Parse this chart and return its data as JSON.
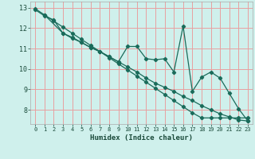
{
  "xlabel": "Humidex (Indice chaleur)",
  "bg_color": "#cff0ec",
  "grid_color": "#e8a0a0",
  "line_color": "#1a6b5a",
  "xlim": [
    -0.5,
    23.5
  ],
  "ylim": [
    7.3,
    13.3
  ],
  "xticks": [
    0,
    1,
    2,
    3,
    4,
    5,
    6,
    7,
    8,
    9,
    10,
    11,
    12,
    13,
    14,
    15,
    16,
    17,
    18,
    19,
    20,
    21,
    22,
    23
  ],
  "yticks": [
    8,
    9,
    10,
    11,
    12,
    13
  ],
  "line1_x": [
    0,
    1,
    2,
    3,
    4,
    5,
    6,
    7,
    8,
    9,
    10,
    11,
    12,
    13,
    14,
    15,
    16,
    17,
    18,
    19,
    20,
    21,
    22,
    23
  ],
  "line1_y": [
    12.95,
    12.65,
    12.35,
    12.05,
    11.75,
    11.45,
    11.15,
    10.85,
    10.55,
    10.25,
    9.95,
    9.65,
    9.35,
    9.05,
    8.75,
    8.45,
    8.15,
    7.85,
    7.6,
    7.6,
    7.6,
    7.6,
    7.6,
    7.6
  ],
  "line2_x": [
    0,
    1,
    2,
    3,
    4,
    5,
    6,
    7,
    8,
    9,
    10,
    11,
    12,
    13,
    14,
    15,
    16,
    17,
    18,
    19,
    20,
    21,
    22,
    23
  ],
  "line2_y": [
    12.9,
    12.6,
    12.4,
    11.75,
    11.55,
    11.3,
    11.05,
    10.85,
    10.6,
    10.35,
    10.1,
    9.85,
    9.55,
    9.3,
    9.1,
    8.9,
    8.65,
    8.45,
    8.2,
    8.0,
    7.8,
    7.65,
    7.5,
    7.45
  ],
  "line3_x": [
    1,
    3,
    4,
    5,
    6,
    7,
    8,
    9,
    10,
    11,
    12,
    13,
    14,
    15,
    16,
    17,
    18,
    19,
    20,
    21,
    22,
    23
  ],
  "line3_y": [
    12.65,
    11.75,
    11.5,
    11.3,
    11.05,
    10.85,
    10.6,
    10.35,
    11.1,
    11.1,
    10.5,
    10.45,
    10.5,
    9.85,
    12.1,
    8.9,
    9.6,
    9.85,
    9.55,
    8.8,
    8.05,
    7.45
  ]
}
